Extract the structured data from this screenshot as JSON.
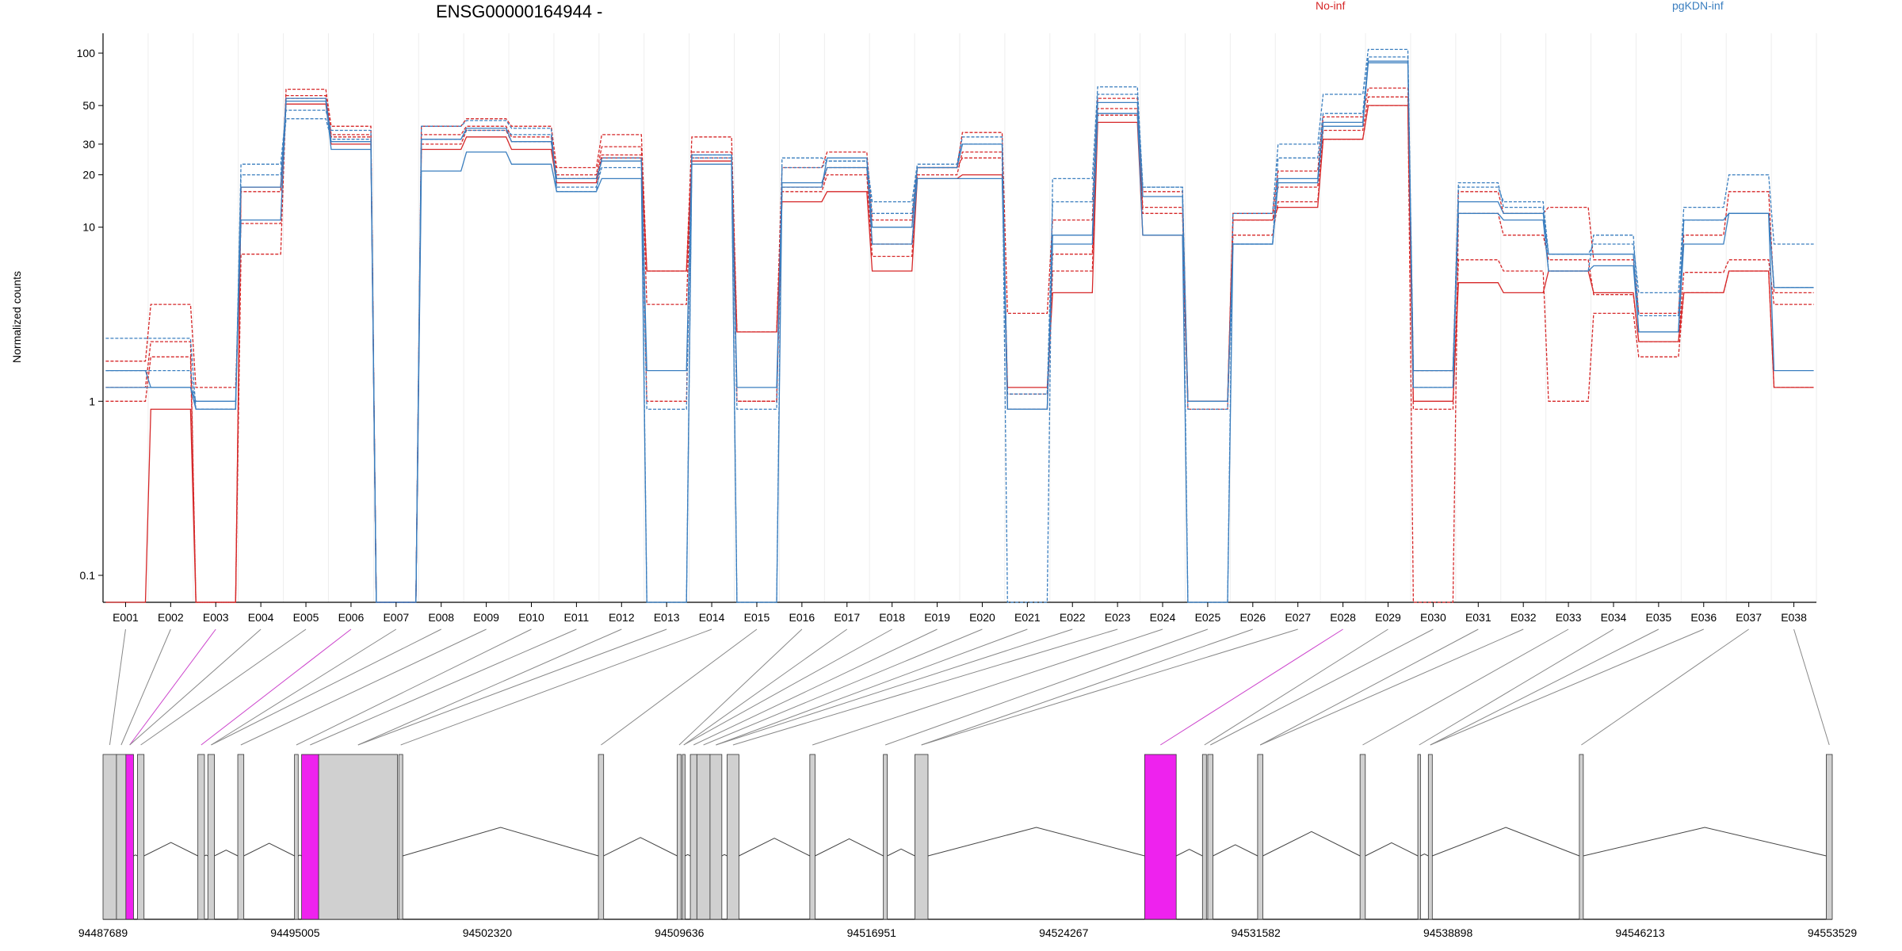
{
  "chart_data": {
    "type": "line",
    "title": "ENSG00000164944 -",
    "ylabel": "Normalized counts",
    "yscale": "log",
    "ylim": [
      0.07,
      130
    ],
    "yticks": [
      0.1,
      1,
      10,
      20,
      30,
      50,
      100
    ],
    "ytick_labels": [
      "0.1",
      "1",
      "10",
      "20",
      "30",
      "50",
      "100"
    ],
    "grid": true,
    "legend_placement": "top",
    "categories": [
      "E001",
      "E002",
      "E003",
      "E004",
      "E005",
      "E006",
      "E007",
      "E008",
      "E009",
      "E010",
      "E011",
      "E012",
      "E013",
      "E014",
      "E015",
      "E016",
      "E017",
      "E018",
      "E019",
      "E020",
      "E021",
      "E022",
      "E023",
      "E024",
      "E025",
      "E026",
      "E027",
      "E028",
      "E029",
      "E030",
      "E031",
      "E032",
      "E033",
      "E034",
      "E035",
      "E036",
      "E037",
      "E038"
    ],
    "highlighted_exons": [
      "E003",
      "E006",
      "E028"
    ],
    "conditions": [
      {
        "name": "No-inf",
        "color": "#d62728"
      },
      {
        "name": "pgKDN-inf",
        "color": "#3a7ebf"
      }
    ],
    "series": [
      {
        "group": "No-inf",
        "style": "dashed",
        "values": [
          1.7,
          3.6,
          1.2,
          10.5,
          62,
          38,
          0.07,
          38,
          42,
          38,
          22,
          34,
          5.6,
          33,
          2.5,
          22,
          27,
          11,
          22,
          35,
          3.2,
          11,
          55,
          16,
          1,
          12,
          21,
          43,
          63,
          1.5,
          16,
          12,
          13,
          6.5,
          3.2,
          9,
          16,
          4.2
        ]
      },
      {
        "group": "No-inf",
        "style": "dashed",
        "values": [
          1.2,
          2.2,
          0.07,
          7,
          55,
          33,
          0.07,
          34,
          38,
          33,
          20,
          29,
          3.6,
          25,
          1,
          17,
          22,
          8,
          20,
          27,
          1.1,
          7,
          48,
          13,
          1,
          11,
          17,
          36,
          56,
          0.07,
          12,
          9,
          6.5,
          4.1,
          2.2,
          5.5,
          6.5,
          3.6
        ]
      },
      {
        "group": "No-inf",
        "style": "dashed",
        "values": [
          1,
          1.8,
          0.07,
          16,
          57,
          34,
          0.07,
          30,
          36,
          31,
          19,
          26,
          1,
          27,
          1,
          16,
          20,
          6.8,
          22,
          25,
          0.9,
          5.6,
          44,
          12,
          0.9,
          9,
          14,
          32,
          50,
          0.9,
          6.5,
          5.6,
          1,
          3.2,
          1.8,
          4.2,
          5.6,
          1.2
        ]
      },
      {
        "group": "No-inf",
        "style": "solid",
        "values": [
          0.07,
          0.9,
          0.07,
          17,
          51,
          30,
          0.07,
          28,
          33,
          28,
          18,
          25,
          5.6,
          24,
          2.5,
          14,
          16,
          5.6,
          19,
          20,
          1.2,
          4.2,
          40,
          9,
          1,
          11,
          13,
          32,
          50,
          1,
          4.8,
          4.2,
          5.6,
          4.2,
          2.2,
          4.2,
          5.6,
          1.2
        ]
      },
      {
        "group": "pgKDN-inf",
        "style": "dashed",
        "values": [
          2.3,
          2.3,
          0.9,
          23,
          47,
          36,
          0.07,
          38,
          41,
          37,
          16,
          25,
          0.07,
          25,
          0.07,
          25,
          24,
          14,
          23,
          33,
          0.07,
          19,
          64,
          17,
          0.07,
          12,
          30,
          58,
          105,
          1.5,
          17,
          14,
          7,
          8,
          4.2,
          13,
          20,
          8
        ]
      },
      {
        "group": "pgKDN-inf",
        "style": "dashed",
        "values": [
          1.5,
          1.5,
          0.9,
          20,
          42,
          32,
          0.07,
          32,
          36,
          34,
          17,
          22,
          0.9,
          26,
          0.9,
          22,
          24,
          12,
          22,
          30,
          1.1,
          14,
          58,
          17,
          0.9,
          8,
          25,
          45,
          95,
          1.2,
          18,
          13,
          5.6,
          9,
          3.1,
          11,
          12,
          4.5
        ]
      },
      {
        "group": "pgKDN-inf",
        "style": "solid",
        "values": [
          1.2,
          1.2,
          1,
          11,
          53,
          28,
          0.07,
          32,
          37,
          31,
          19,
          24,
          1.5,
          26,
          1.2,
          18,
          22,
          10,
          22,
          30,
          0.9,
          9,
          52,
          15,
          1,
          8,
          19,
          40,
          90,
          1.2,
          14,
          12,
          7,
          7,
          2.5,
          11,
          12,
          1.5
        ]
      },
      {
        "group": "pgKDN-inf",
        "style": "solid",
        "values": [
          1.5,
          1.2,
          0.9,
          17,
          55,
          31,
          0.07,
          21,
          27,
          23,
          16,
          19,
          0.07,
          23,
          0.07,
          17,
          25,
          8,
          19,
          19,
          0.9,
          8,
          45,
          9,
          0.07,
          8,
          18,
          38,
          88,
          1.5,
          12,
          11,
          5.6,
          6,
          2.5,
          8,
          12,
          4.5
        ]
      }
    ],
    "genome": {
      "coordinate_labels": [
        "94487689",
        "94495005",
        "94502320",
        "94509636",
        "94516951",
        "94524267",
        "94531582",
        "94538898",
        "94546213",
        "94553529"
      ],
      "range": [
        94487689,
        94553529
      ],
      "exons": [
        [
          94487689,
          94488200
        ],
        [
          94488200,
          94488560
        ],
        [
          94488560,
          94488850
        ],
        [
          94489000,
          94489250
        ],
        [
          94491300,
          94491550
        ],
        [
          94491680,
          94491930
        ],
        [
          94492820,
          94493050
        ],
        [
          94494980,
          94495120
        ],
        [
          94495250,
          94495900
        ],
        [
          94495900,
          94498900
        ],
        [
          94498950,
          94499100
        ],
        [
          94506550,
          94506750
        ],
        [
          94509550,
          94509700
        ],
        [
          94509750,
          94509850
        ],
        [
          94510050,
          94510300
        ],
        [
          94510300,
          94510800
        ],
        [
          94510800,
          94511250
        ],
        [
          94511450,
          94511900
        ],
        [
          94514600,
          94514800
        ],
        [
          94517400,
          94517550
        ],
        [
          94518600,
          94519100
        ],
        [
          94527350,
          94528550
        ],
        [
          94529550,
          94529700
        ],
        [
          94529750,
          94529950
        ],
        [
          94531650,
          94531850
        ],
        [
          94535550,
          94535750
        ],
        [
          94537750,
          94537850
        ],
        [
          94538150,
          94538300
        ],
        [
          94543900,
          94544050
        ],
        [
          94553300,
          94553529
        ]
      ],
      "highlighted_exons_genomic": [
        [
          94488560,
          94488850
        ],
        [
          94495250,
          94495900
        ],
        [
          94527350,
          94528550
        ]
      ]
    }
  },
  "legend": {
    "no_inf_label": "No-inf",
    "pgkdn_inf_label": "pgKDN-inf"
  },
  "colors": {
    "no_inf": "#d62728",
    "pgkdn_inf": "#3a7ebf",
    "exon_fill": "#d0d0d0",
    "highlight_fill": "#ee22ee",
    "mapping_line": "#888888",
    "mapping_highlight": "#cc44cc"
  }
}
